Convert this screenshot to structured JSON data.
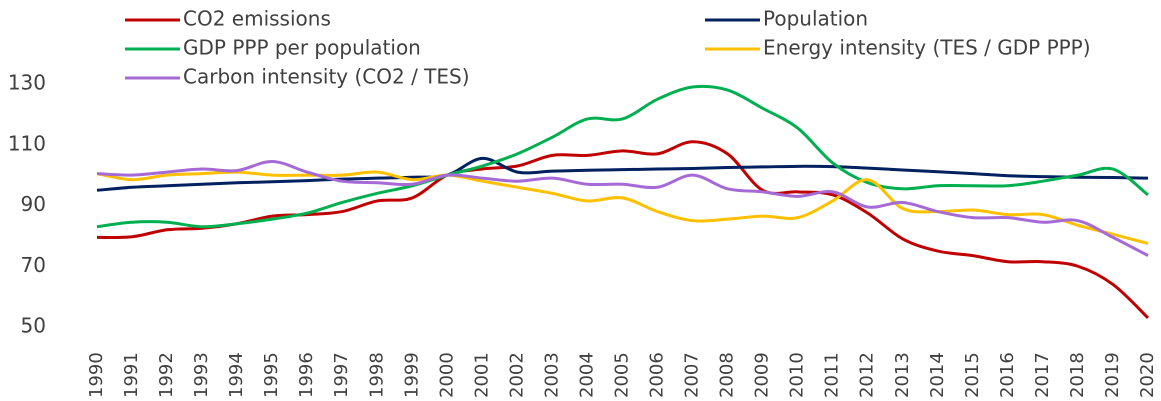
{
  "chart_data": {
    "type": "line",
    "categories": [
      "1990",
      "1991",
      "1992",
      "1993",
      "1994",
      "1995",
      "1996",
      "1997",
      "1998",
      "1999",
      "2000",
      "2001",
      "2002",
      "2003",
      "2004",
      "2005",
      "2006",
      "2007",
      "2008",
      "2009",
      "2010",
      "2011",
      "2012",
      "2013",
      "2014",
      "2015",
      "2016",
      "2017",
      "2018",
      "2019",
      "2020"
    ],
    "series": [
      {
        "name": "CO2 emissions",
        "color": "#c00000",
        "values": [
          79.5,
          79.7,
          82,
          82.5,
          84,
          86.5,
          87,
          88,
          91.5,
          92.5,
          100,
          102,
          103,
          106.5,
          106.5,
          108,
          107,
          111,
          107,
          95,
          94.5,
          93.5,
          87.5,
          79,
          75,
          73.5,
          71.5,
          71.5,
          70,
          64,
          53
        ]
      },
      {
        "name": "Population",
        "color": "#002060",
        "values": [
          95,
          96,
          96.5,
          97,
          97.5,
          97.8,
          98.2,
          98.7,
          99,
          99.3,
          100,
          105.5,
          101,
          101.3,
          101.6,
          101.8,
          102,
          102.2,
          102.5,
          102.7,
          102.9,
          102.8,
          102.3,
          101.7,
          101.1,
          100.5,
          99.8,
          99.5,
          99.3,
          99.2,
          99
        ]
      },
      {
        "name": "GDP PPP per population",
        "color": "#00b050",
        "values": [
          83,
          84.5,
          84.5,
          83,
          84,
          85.5,
          87.5,
          91,
          94,
          96.5,
          100,
          103,
          107,
          112.5,
          118.5,
          118.5,
          125,
          129,
          128,
          122,
          115.5,
          104,
          97.5,
          95.5,
          96.5,
          96.5,
          96.5,
          98,
          100,
          102,
          93.5
        ]
      },
      {
        "name": "Energy intensity (TES / GDP PPP)",
        "color": "#ffc000",
        "values": [
          100.5,
          98.5,
          100,
          100.5,
          101,
          100,
          100,
          100,
          101,
          98.5,
          100,
          98,
          96,
          94,
          91.5,
          92.5,
          88,
          85,
          85.5,
          86.5,
          86,
          91.5,
          98.5,
          89,
          88,
          88.5,
          87,
          87,
          83.5,
          80.5,
          77.5
        ]
      },
      {
        "name": "Carbon intensity (CO2 / TES)",
        "color": "#a56ad6",
        "values": [
          100.5,
          100,
          101,
          102,
          101.5,
          104.5,
          101,
          98,
          97.5,
          97,
          100,
          99,
          98,
          99,
          97,
          97,
          96,
          100,
          95.5,
          94.5,
          93,
          94.5,
          89.5,
          91,
          88,
          86,
          86,
          84.5,
          85,
          79.5,
          73.5
        ]
      }
    ],
    "ylim": [
      50,
      130
    ],
    "yticks": [
      50,
      70,
      90,
      110,
      130
    ],
    "grid": false
  }
}
